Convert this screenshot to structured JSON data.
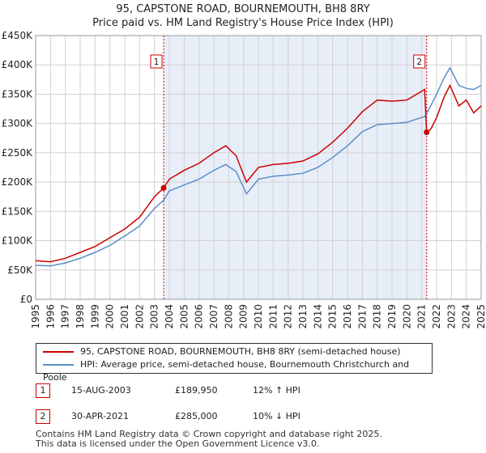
{
  "title_line1": "95, CAPSTONE ROAD, BOURNEMOUTH, BH8 8RY",
  "title_line2": "Price paid vs. HM Land Registry's House Price Index (HPI)",
  "colors": {
    "property": "#cc0000",
    "hpi": "#5b8ec9",
    "shade": "#e8eef8",
    "grid": "#d0d0d0",
    "marker_line": "#cc0000"
  },
  "legend": {
    "property": "95, CAPSTONE ROAD, BOURNEMOUTH, BH8 8RY (semi-detached house)",
    "hpi": "HPI: Average price, semi-detached house, Bournemouth Christchurch and Poole"
  },
  "sales": [
    {
      "num": "1",
      "date": "15-AUG-2003",
      "price": "£189,950",
      "hpi": "12% ↑ HPI"
    },
    {
      "num": "2",
      "date": "30-APR-2021",
      "price": "£285,000",
      "hpi": "10% ↓ HPI"
    }
  ],
  "footer_line1": "Contains HM Land Registry data © Crown copyright and database right 2025.",
  "footer_line2": "This data is licensed under the Open Government Licence v3.0.",
  "chart_data": {
    "type": "line",
    "title": "Price paid vs. HM Land Registry's House Price Index (HPI)",
    "xlabel": "",
    "ylabel": "",
    "xlim": [
      1995,
      2025
    ],
    "ylim": [
      0,
      450000
    ],
    "y_ticks": [
      0,
      50000,
      100000,
      150000,
      200000,
      250000,
      300000,
      350000,
      400000,
      450000
    ],
    "y_tick_labels": [
      "£0",
      "£50K",
      "£100K",
      "£150K",
      "£200K",
      "£250K",
      "£300K",
      "£350K",
      "£400K",
      "£450K"
    ],
    "x_ticks": [
      1995,
      1996,
      1997,
      1998,
      1999,
      2000,
      2001,
      2002,
      2003,
      2004,
      2005,
      2006,
      2007,
      2008,
      2009,
      2010,
      2011,
      2012,
      2013,
      2014,
      2015,
      2016,
      2017,
      2018,
      2019,
      2020,
      2021,
      2022,
      2023,
      2024,
      2025
    ],
    "shaded_region": [
      2003.62,
      2021.33
    ],
    "markers": [
      {
        "label": "1",
        "x": 2003.62,
        "y": 189950
      },
      {
        "label": "2",
        "x": 2021.33,
        "y": 285000
      }
    ],
    "series": [
      {
        "name": "95, CAPSTONE ROAD, BOURNEMOUTH, BH8 8RY (semi-detached house)",
        "x": [
          1995,
          1996,
          1997,
          1998,
          1999,
          2000,
          2001,
          2002,
          2003,
          2003.62,
          2004,
          2005,
          2006,
          2007,
          2007.8,
          2008.5,
          2009.2,
          2010,
          2011,
          2012,
          2013,
          2014,
          2015,
          2016,
          2017,
          2018,
          2019,
          2020,
          2021.2,
          2021.33,
          2021.6,
          2022,
          2022.5,
          2022.9,
          2023.5,
          2024,
          2024.5,
          2025
        ],
        "values": [
          66000,
          64000,
          70000,
          80000,
          90000,
          105000,
          120000,
          140000,
          175000,
          189950,
          205000,
          220000,
          232000,
          250000,
          262000,
          245000,
          200000,
          225000,
          230000,
          232000,
          236000,
          248000,
          268000,
          292000,
          320000,
          340000,
          338000,
          340000,
          358000,
          285000,
          290000,
          310000,
          345000,
          365000,
          330000,
          340000,
          318000,
          330000
        ]
      },
      {
        "name": "HPI: Average price, semi-detached house, Bournemouth Christchurch and Poole",
        "x": [
          1995,
          1996,
          1997,
          1998,
          1999,
          2000,
          2001,
          2002,
          2003,
          2003.62,
          2004,
          2005,
          2006,
          2007,
          2007.8,
          2008.5,
          2009.2,
          2010,
          2011,
          2012,
          2013,
          2014,
          2015,
          2016,
          2017,
          2018,
          2019,
          2020,
          2021.2,
          2021.33,
          2021.6,
          2022,
          2022.5,
          2022.9,
          2023.5,
          2024,
          2024.5,
          2025
        ],
        "values": [
          58000,
          57000,
          62000,
          70000,
          80000,
          92000,
          108000,
          125000,
          155000,
          169000,
          185000,
          195000,
          205000,
          220000,
          230000,
          218000,
          180000,
          205000,
          210000,
          212000,
          215000,
          225000,
          242000,
          262000,
          286000,
          298000,
          300000,
          302000,
          312000,
          317000,
          330000,
          350000,
          378000,
          395000,
          365000,
          360000,
          358000,
          365000
        ]
      }
    ]
  }
}
